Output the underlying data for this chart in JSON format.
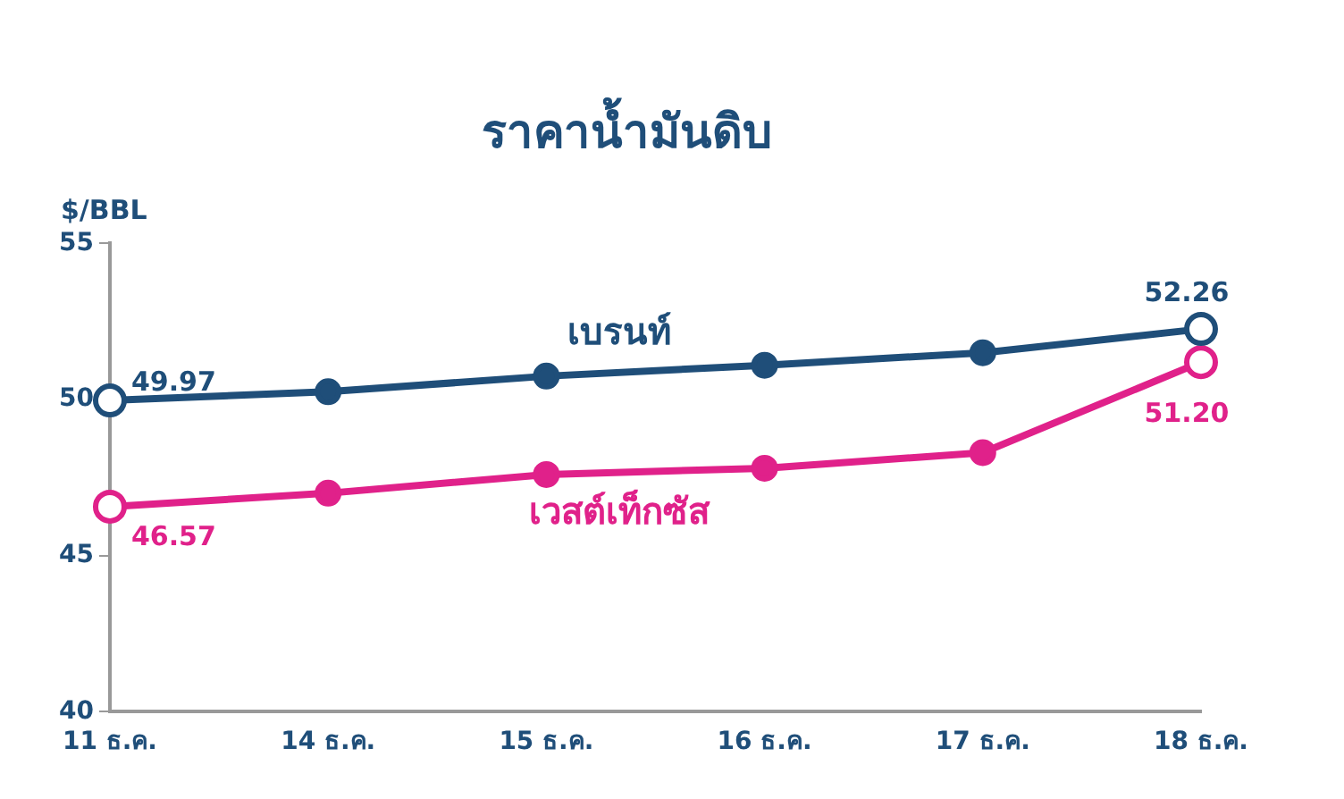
{
  "chart_data": {
    "type": "line",
    "title": "ราคาน้ำมันดิบ",
    "ylabel": "$/BBL",
    "categories": [
      "11 ธ.ค.",
      "14 ธ.ค.",
      "15 ธ.ค.",
      "16 ธ.ค.",
      "17 ธ.ค.",
      "18 ธ.ค."
    ],
    "series": [
      {
        "name": "เบรนท์",
        "color": "#1f4e79",
        "values": [
          49.97,
          50.25,
          50.75,
          51.1,
          51.5,
          52.26
        ],
        "value_labels": [
          "49.97",
          null,
          null,
          null,
          null,
          "52.26"
        ]
      },
      {
        "name": "เวสต์เท็กซัส",
        "color": "#e0218a",
        "values": [
          46.57,
          47.0,
          47.6,
          47.8,
          48.3,
          51.2
        ],
        "value_labels": [
          "46.57",
          null,
          null,
          null,
          null,
          "51.20"
        ]
      }
    ],
    "ylim": [
      40,
      55
    ],
    "yticks": [
      40,
      45,
      50,
      55
    ],
    "grid": false,
    "legend": false,
    "marker": "circle",
    "line_style": "solid"
  }
}
